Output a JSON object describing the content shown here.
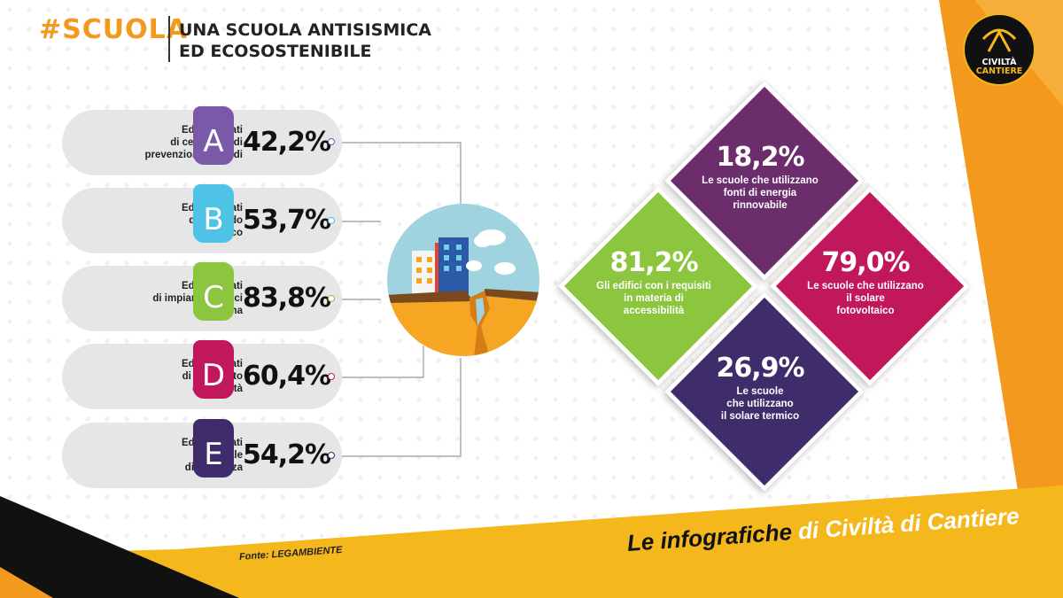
{
  "header": {
    "hashtag": "#SCUOLA",
    "title_line1": "UNA SCUOLA ANTISISMICA",
    "title_line2": "ED ECOSOSTENIBILE"
  },
  "logo": {
    "line1": "CIVILTÀ",
    "line2": "CANTIERE"
  },
  "rows": [
    {
      "letter": "A",
      "value": "42,2%",
      "color": "#7a5aa8",
      "desc": [
        "Edifici dotati",
        "di certificato di",
        "prevenzione incendi"
      ]
    },
    {
      "letter": "B",
      "value": "53,7%",
      "color": "#4ec3e6",
      "desc": [
        "Edifici dotati",
        "di collaudo",
        "statico"
      ]
    },
    {
      "letter": "C",
      "value": "83,8%",
      "color": "#8cc63f",
      "desc": [
        "Edifici dotati",
        "di impianti elettrici",
        "a norma"
      ]
    },
    {
      "letter": "D",
      "value": "60,4%",
      "color": "#c1185b",
      "desc": [
        "Edifici dotati",
        "di certificato",
        "di agibilità"
      ]
    },
    {
      "letter": "E",
      "value": "54,2%",
      "color": "#3f2d6b",
      "desc": [
        "Edifici dotati",
        "di scale",
        "di sicurezza"
      ]
    }
  ],
  "diamonds": [
    {
      "value": "18,2%",
      "color": "#6b2d6b",
      "desc": [
        "Le scuole che utilizzano",
        "fonti di energia",
        "rinnovabile"
      ]
    },
    {
      "value": "81,2%",
      "color": "#8cc63f",
      "desc": [
        "Gli edifici con i requisiti",
        "in materia di",
        "accessibilità"
      ]
    },
    {
      "value": "79,0%",
      "color": "#c1185b",
      "desc": [
        "Le scuole che utilizzano",
        "il solare",
        "fotovoltaico"
      ]
    },
    {
      "value": "26,9%",
      "color": "#3f2d6b",
      "desc": [
        "Le scuole",
        "che utilizzano",
        "il solare termico"
      ]
    }
  ],
  "footer": {
    "part1": "Le infografiche ",
    "part2": "di Civiltà di Cantiere",
    "source": "Fonte: LEGAMBIENTE"
  },
  "colors": {
    "orange": "#f39a1e",
    "yellow": "#f5b81c",
    "black": "#111111"
  }
}
